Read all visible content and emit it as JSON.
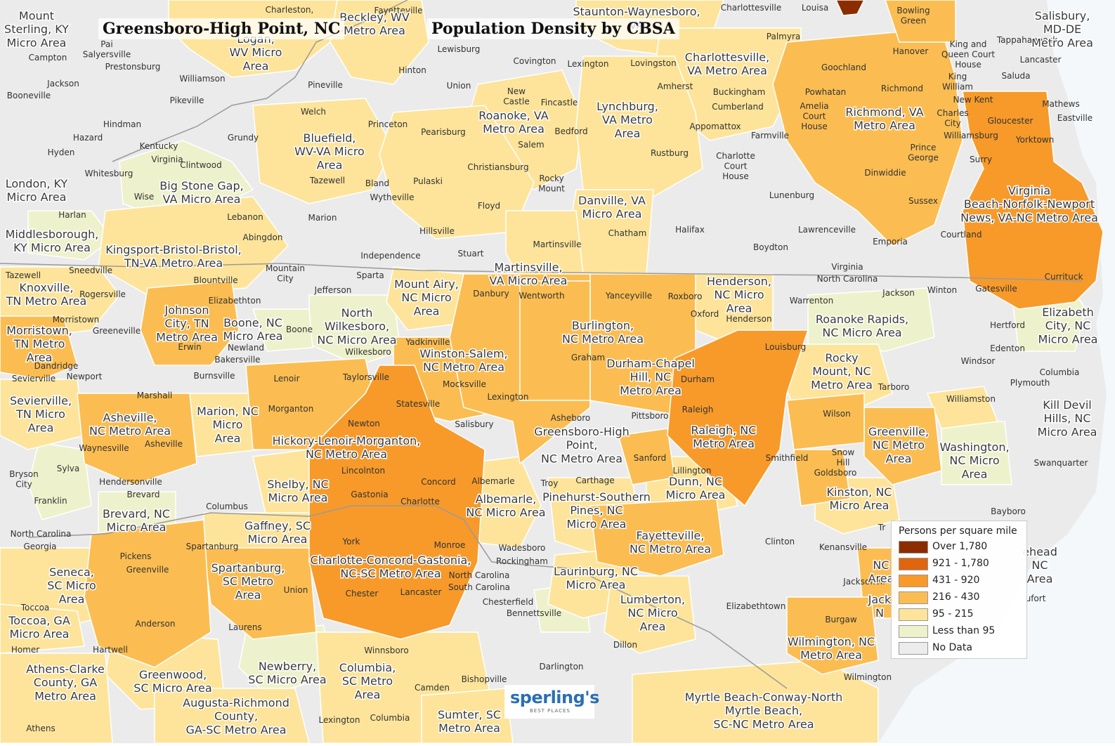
{
  "title_left": "Greensboro-High Point, NC",
  "title_right": "Population Density by CBSA",
  "legend": {
    "title": "Persons per square mile",
    "items": [
      {
        "label": "Over 1,780",
        "color": "#8b2d00"
      },
      {
        "label": "921 - 1,780",
        "color": "#e0650f"
      },
      {
        "label": "431 - 920",
        "color": "#f79a2a"
      },
      {
        "label": "216 - 430",
        "color": "#fbbd52"
      },
      {
        "label": "95 - 215",
        "color": "#fde49a"
      },
      {
        "label": "Less than 95",
        "color": "#eef2cc"
      },
      {
        "label": "No Data",
        "color": "#ececec"
      }
    ]
  },
  "logo": {
    "main": "sperling's",
    "sub": "BEST PLACES"
  },
  "metro_labels": [
    "Mount\nSterling, KY\nMicro Area",
    "Logan,\nWV Micro\nArea",
    "Beckley, WV\nMetro Area",
    "Staunton-Waynesboro,\nVA",
    "Salisbury,\nMD-DE\nMetro Area",
    "Charlottesville,\nVA Metro Area",
    "Roanoke, VA\nMetro Area",
    "Lynchburg,\nVA Metro\nArea",
    "Richmond, VA\nMetro Area",
    "Bluefield,\nWV-VA Micro\nArea",
    "London, KY\nMicro Area",
    "Big Stone Gap,\nVA Micro Area",
    "Danville, VA\nMicro Area",
    "Virginia\nBeach-Norfolk-Newport\nNews, VA-NC Metro Area",
    "Middlesborough,\nKY Micro Area",
    "Kingsport-Bristol-Bristol,\nTN-VA Metro Area",
    "Martinsville,\nVA Micro Area",
    "Knoxville,\nTN Metro Area",
    "Mount Airy,\nNC Micro\nArea",
    "Henderson,\nNC Micro\nArea",
    "Elizabeth\nCity, NC\nMicro Area",
    "Johnson\nCity, TN\nMetro Area",
    "Boone, NC\nMicro Area",
    "North\nWilkesboro,\nNC Micro Area",
    "Morristown,\nTN Metro\nArea",
    "Roanoke Rapids,\nNC Micro Area",
    "Winston-Salem,\nNC Metro Area",
    "Burlington,\nNC Metro Area",
    "Durham-Chapel\nHill, NC\nMetro Area",
    "Rocky\nMount, NC\nMetro Area",
    "Sevierville,\nTN Micro\nArea",
    "Asheville,\nNC Metro Area",
    "Marion, NC\nMicro\nArea",
    "Kill Devil\nHills, NC\nMicro Area",
    "Greensboro-High\nPoint,\nNC Metro Area",
    "Raleigh, NC\nMetro Area",
    "Greenville,\nNC Metro\nArea",
    "Washington,\nNC Micro\nArea",
    "Hickory-Lenoir-Morganton,\nNC Metro Area",
    "Shelby, NC\nMicro Area",
    "Albemarle,\nNC Micro Area",
    "Pinehurst-Southern\nPines, NC\nMicro Area",
    "Dunn, NC\nMicro Area",
    "Kinston, NC\nMicro Area",
    "Brevard, NC\nMicro Area",
    "Gaffney, SC\nMicro Area",
    "Fayetteville,\nNC Metro Area",
    "Charlotte-Concord-Gastonia,\nNC-SC Metro Area",
    "Spartanburg,\nSC Metro\nArea",
    "Seneca,\nSC Micro\nArea",
    "Laurinburg, NC\nMicro Area",
    "Lumberton,\nNC Micro\nArea",
    "Toccoa, GA\nMicro Area",
    "Wilmington, NC\nMetro Area",
    "Athens-Clarke\nCounty, GA\nMetro Area",
    "Greenwood,\nSC Micro Area",
    "Newberry,\nSC Micro Area",
    "Columbia,\nSC Metro\nArea",
    "Augusta-Richmond\nCounty,\nGA-SC Metro Area",
    "Sumter, SC\nMetro Area",
    "Myrtle Beach-Conway-North\nMyrtle Beach,\nSC-NC Metro Area",
    "Jack\nN",
    "NC\nArea",
    "ehead\nNC\nArea"
  ],
  "place_labels": [
    "Charleston,",
    "Fayetteville",
    "Louisa",
    "Bowling\nGreen",
    "Charlottesville",
    "Pai\nSalyersville",
    "Campton",
    "Lewisburg",
    "Palmyra",
    "Tappahannock",
    "Prestonsburg",
    "Covington",
    "Lexington",
    "Lovingston",
    "King and\nQueen Court\nHouse",
    "Lancaster",
    "Jackson",
    "Williamson",
    "Hanover",
    "Goochland",
    "Booneville",
    "Pineville",
    "Union",
    "Amherst",
    "Hinton",
    "New\nCastle",
    "Fincastle",
    "Buckingham",
    "Powhatan",
    "Richmond",
    "Pikeville",
    "Welch",
    "Cumberland",
    "Amelia\nCourt\nHouse",
    "King\nWilliam",
    "Saluda",
    "New Kent",
    "Mathews",
    "Eastville",
    "Charles\nCity",
    "Hindman",
    "Princeton",
    "Pearisburg",
    "Bedford",
    "Appomattox",
    "Farmville",
    "Williamsburg",
    "Gloucester",
    "Hazard",
    "Grundy",
    "Salem",
    "Yorktown",
    "Prince\nGeorge",
    "Hyden",
    "Kentucky",
    "Virginia",
    "Rustburg",
    "Surry",
    "Clintwood",
    "Charlotte\nCourt\nHouse",
    "Christiansburg",
    "Dinwiddie",
    "Whitesburg",
    "Tazewell",
    "Bland",
    "Pulaski",
    "Rocky\nMount",
    "Wise",
    "Wytheville",
    "Lunenburg",
    "Sussex",
    "Harlan",
    "Floyd",
    "Lebanon",
    "Marion",
    "Hillsville",
    "Chatham",
    "Halifax",
    "Lawrenceville",
    "Courtland",
    "Abingdon",
    "Emporia",
    "Martinsville",
    "Boydton",
    "Independence",
    "Stuart",
    "Tazewell",
    "Sneedville",
    "Mountain\nCity",
    "Sparta",
    "Virginia",
    "North Carolina",
    "Currituck",
    "Blountville",
    "Jefferson",
    "Danbury",
    "Wentworth",
    "Yanceyville",
    "Roxboro",
    "Jackson",
    "Winton",
    "Gatesville",
    "Rogersville",
    "Elizabethton",
    "Warrenton",
    "Oxford",
    "Henderson",
    "Morristown",
    "Greeneville",
    "Boone",
    "Hertford",
    "Erwin",
    "Newland",
    "Wilkesboro",
    "Yadkinville",
    "Louisburg",
    "Edenton",
    "Dandridge",
    "Graham",
    "Windsor",
    "Bakersville",
    "Newport",
    "Sevierville",
    "Lenoir",
    "Taylorsville",
    "Mocksville",
    "Durham",
    "Columbia",
    "Burnsville",
    "Tarboro",
    "Plymouth",
    "Lexington",
    "Statesville",
    "Marshall",
    "Williamston",
    "Raleigh",
    "Morganton",
    "Wilson",
    "Asheboro",
    "Pittsboro",
    "Newton",
    "Salisbury",
    "Waynesville",
    "Asheville",
    "Snow\nHill",
    "Smithfield",
    "Sanford",
    "Bryson\nCity",
    "Sylva",
    "Lincolnton",
    "Lillington",
    "Goldsboro",
    "Swanquarter",
    "Concord",
    "Albemarle",
    "Troy",
    "Carthage",
    "Hendersonville",
    "Gastonia",
    "Franklin",
    "Brevard",
    "Bayboro",
    "Columbus",
    "Charlotte",
    "Tr",
    "North Carolina",
    "Georgia",
    "Gaffney",
    "Monroe",
    "Wadesboro",
    "York",
    "Clinton",
    "Kenansville",
    "Spartanburg",
    "Pickens",
    "Greenville",
    "Rockingham",
    "North Carolina",
    "South Carolina",
    "Jacksonvil",
    "Union",
    "Chester",
    "Lancaster",
    "ufort",
    "Chesterfield",
    "Bennettsville",
    "Elizabethtown",
    "Toccoa",
    "Anderson",
    "Laurens",
    "Burgaw",
    "Hartwell",
    "Dillon",
    "Homer",
    "Winnsboro",
    "Darlington",
    "Wilmington",
    "Bishopville",
    "Camden",
    "Lexington",
    "Columbia",
    "Athens"
  ]
}
